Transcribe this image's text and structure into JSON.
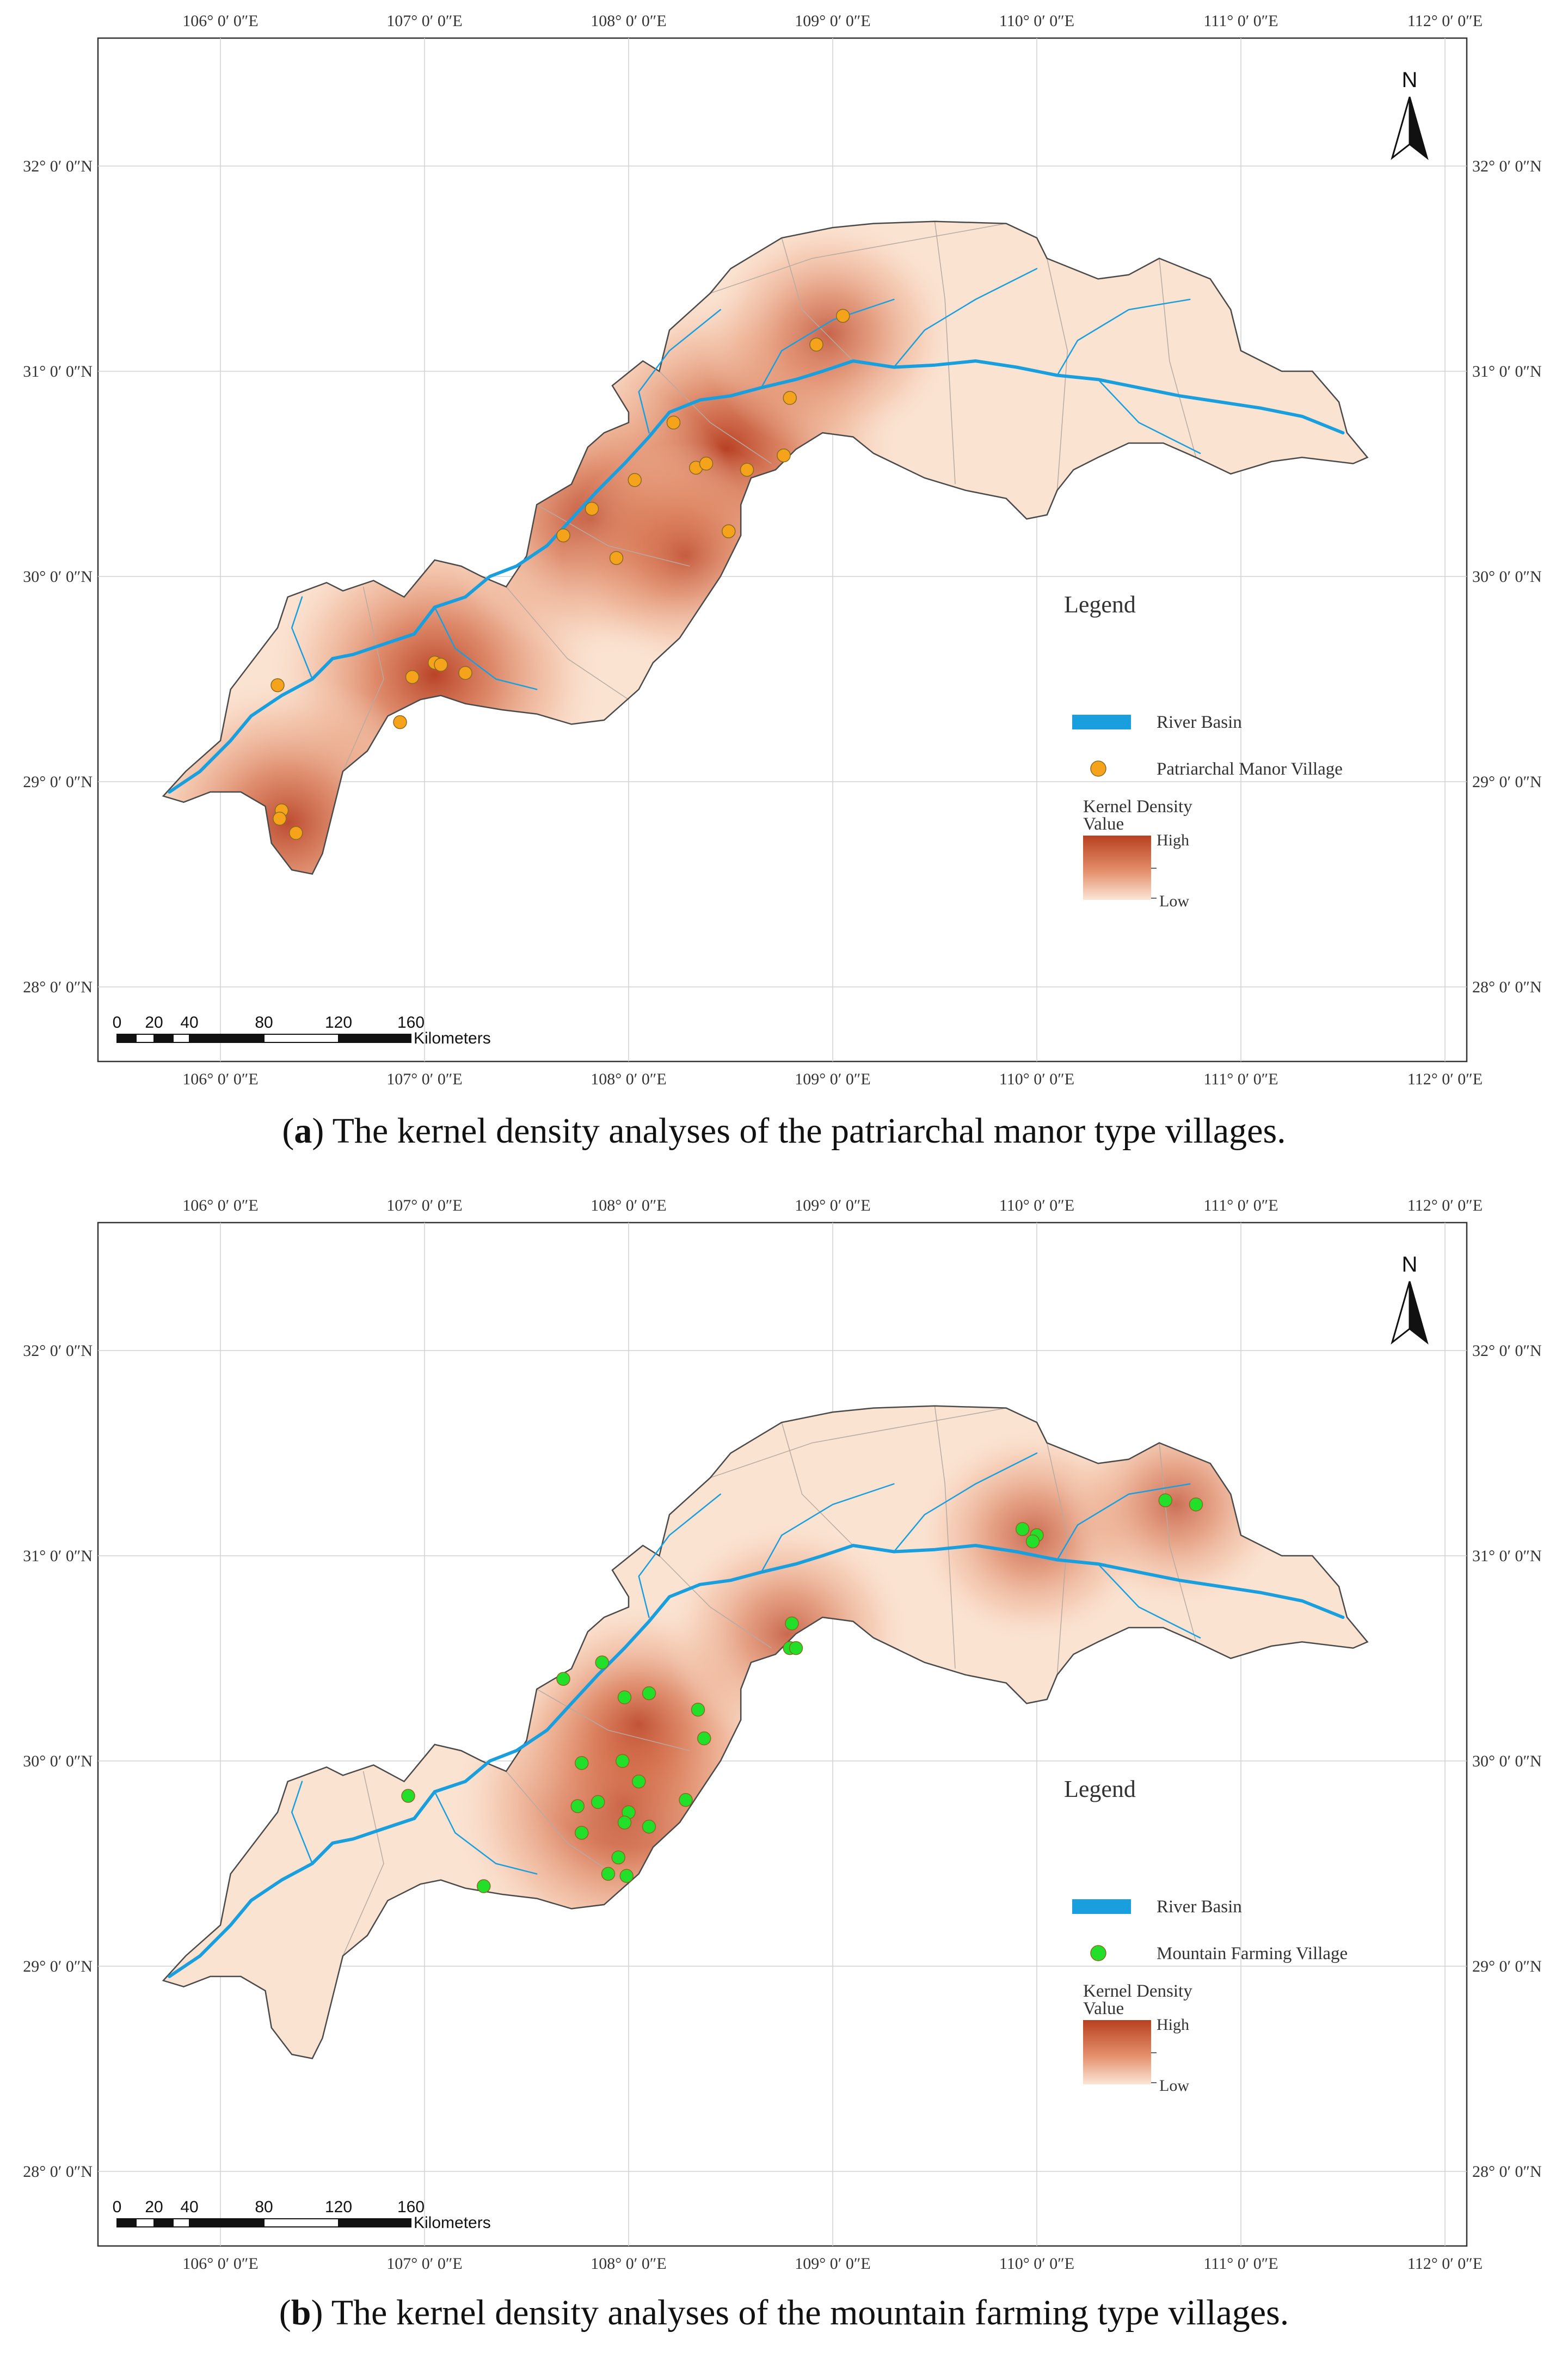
{
  "panels": [
    {
      "id": "a",
      "caption_letter": "a",
      "caption_text": " The kernel density analyses of the patriarchal manor type villages.",
      "top_labels": [
        "106° 0′ 0″E",
        "107° 0′ 0″E",
        "108° 0′ 0″E",
        "109° 0′ 0″E",
        "110° 0′ 0″E",
        "111° 0′ 0″E",
        "112° 0′ 0″E"
      ],
      "bottom_labels": [
        "106° 0′ 0″E",
        "107° 0′ 0″E",
        "108° 0′ 0″E",
        "109° 0′ 0″E",
        "110° 0′ 0″E",
        "111° 0′ 0″E",
        "112° 0′ 0″E"
      ],
      "lat_labels": [
        "32° 0′ 0″N",
        "31° 0′ 0″N",
        "30° 0′ 0″N",
        "29° 0′ 0″N",
        "28° 0′ 0″N"
      ],
      "north": "N",
      "legend": {
        "title": "Legend",
        "river": "River Basin",
        "points": "Patriarchal Manor Village",
        "kd_title_1": "Kernel Density",
        "kd_title_2": "Value",
        "high": "High",
        "low": "Low"
      },
      "scalebar": {
        "ticks": [
          "0",
          "20",
          "40",
          "80",
          "120",
          "160"
        ],
        "unit": "Kilometers"
      },
      "point_color": "#f5a31a",
      "villages": [
        {
          "lon": 109.05,
          "lat": 31.27
        },
        {
          "lon": 108.92,
          "lat": 31.13
        },
        {
          "lon": 108.79,
          "lat": 30.87
        },
        {
          "lon": 108.22,
          "lat": 30.75
        },
        {
          "lon": 108.76,
          "lat": 30.59
        },
        {
          "lon": 108.33,
          "lat": 30.53
        },
        {
          "lon": 108.38,
          "lat": 30.55
        },
        {
          "lon": 108.58,
          "lat": 30.52
        },
        {
          "lon": 108.03,
          "lat": 30.47
        },
        {
          "lon": 107.82,
          "lat": 30.33
        },
        {
          "lon": 107.68,
          "lat": 30.2
        },
        {
          "lon": 108.49,
          "lat": 30.22
        },
        {
          "lon": 107.94,
          "lat": 30.09
        },
        {
          "lon": 107.05,
          "lat": 29.58
        },
        {
          "lon": 107.08,
          "lat": 29.57
        },
        {
          "lon": 106.94,
          "lat": 29.51
        },
        {
          "lon": 107.2,
          "lat": 29.53
        },
        {
          "lon": 106.28,
          "lat": 29.47
        },
        {
          "lon": 106.88,
          "lat": 29.29
        },
        {
          "lon": 106.3,
          "lat": 28.86
        },
        {
          "lon": 106.29,
          "lat": 28.82
        },
        {
          "lon": 106.37,
          "lat": 28.75
        }
      ],
      "hotspots": [
        {
          "lon": 108.48,
          "lat": 30.62,
          "intensity": 1.0
        },
        {
          "lon": 107.05,
          "lat": 29.52,
          "intensity": 0.95
        },
        {
          "lon": 107.82,
          "lat": 30.28,
          "intensity": 0.75
        },
        {
          "lon": 106.33,
          "lat": 28.8,
          "intensity": 0.85
        },
        {
          "lon": 108.98,
          "lat": 31.18,
          "intensity": 0.5
        },
        {
          "lon": 108.28,
          "lat": 30.1,
          "intensity": 0.45
        }
      ]
    },
    {
      "id": "b",
      "caption_letter": "b",
      "caption_text": " The kernel density analyses of the mountain farming type villages.",
      "top_labels": [
        "106° 0′ 0″E",
        "107° 0′ 0″E",
        "108° 0′ 0″E",
        "109° 0′ 0″E",
        "110° 0′ 0″E",
        "111° 0′ 0″E",
        "112° 0′ 0″E"
      ],
      "bottom_labels": [
        "106° 0′ 0″E",
        "107° 0′ 0″E",
        "108° 0′ 0″E",
        "109° 0′ 0″E",
        "110° 0′ 0″E",
        "111° 0′ 0″E",
        "112° 0′ 0″E"
      ],
      "lat_labels": [
        "32° 0′ 0″N",
        "31° 0′ 0″N",
        "30° 0′ 0″N",
        "29° 0′ 0″N",
        "28° 0′ 0″N"
      ],
      "north": "N",
      "legend": {
        "title": "Legend",
        "river": "River Basin",
        "points": "Mountain Farming Village",
        "kd_title_1": "Kernel Density",
        "kd_title_2": "Value",
        "high": "High",
        "low": "Low"
      },
      "scalebar": {
        "ticks": [
          "0",
          "20",
          "40",
          "80",
          "120",
          "160"
        ],
        "unit": "Kilometers"
      },
      "point_color": "#22e02a",
      "villages": [
        {
          "lon": 110.63,
          "lat": 31.27
        },
        {
          "lon": 110.78,
          "lat": 31.25
        },
        {
          "lon": 109.93,
          "lat": 31.13
        },
        {
          "lon": 110.0,
          "lat": 31.1
        },
        {
          "lon": 109.98,
          "lat": 31.07
        },
        {
          "lon": 108.8,
          "lat": 30.67
        },
        {
          "lon": 108.79,
          "lat": 30.55
        },
        {
          "lon": 108.82,
          "lat": 30.55
        },
        {
          "lon": 107.68,
          "lat": 30.4
        },
        {
          "lon": 107.87,
          "lat": 30.48
        },
        {
          "lon": 107.98,
          "lat": 30.31
        },
        {
          "lon": 108.1,
          "lat": 30.33
        },
        {
          "lon": 108.34,
          "lat": 30.25
        },
        {
          "lon": 108.37,
          "lat": 30.11
        },
        {
          "lon": 107.77,
          "lat": 29.99
        },
        {
          "lon": 107.97,
          "lat": 30.0
        },
        {
          "lon": 108.05,
          "lat": 29.9
        },
        {
          "lon": 108.28,
          "lat": 29.81
        },
        {
          "lon": 107.85,
          "lat": 29.8
        },
        {
          "lon": 107.75,
          "lat": 29.78
        },
        {
          "lon": 108.0,
          "lat": 29.75
        },
        {
          "lon": 107.98,
          "lat": 29.7
        },
        {
          "lon": 108.1,
          "lat": 29.68
        },
        {
          "lon": 107.77,
          "lat": 29.65
        },
        {
          "lon": 107.95,
          "lat": 29.53
        },
        {
          "lon": 107.9,
          "lat": 29.45
        },
        {
          "lon": 107.99,
          "lat": 29.44
        },
        {
          "lon": 106.92,
          "lat": 29.83
        },
        {
          "lon": 107.29,
          "lat": 29.39
        }
      ],
      "hotspots": [
        {
          "lon": 107.98,
          "lat": 29.78,
          "intensity": 1.0
        },
        {
          "lon": 108.05,
          "lat": 30.18,
          "intensity": 0.55
        },
        {
          "lon": 108.78,
          "lat": 30.62,
          "intensity": 0.45
        },
        {
          "lon": 109.98,
          "lat": 31.1,
          "intensity": 0.4
        },
        {
          "lon": 110.68,
          "lat": 31.25,
          "intensity": 0.35
        }
      ]
    }
  ]
}
